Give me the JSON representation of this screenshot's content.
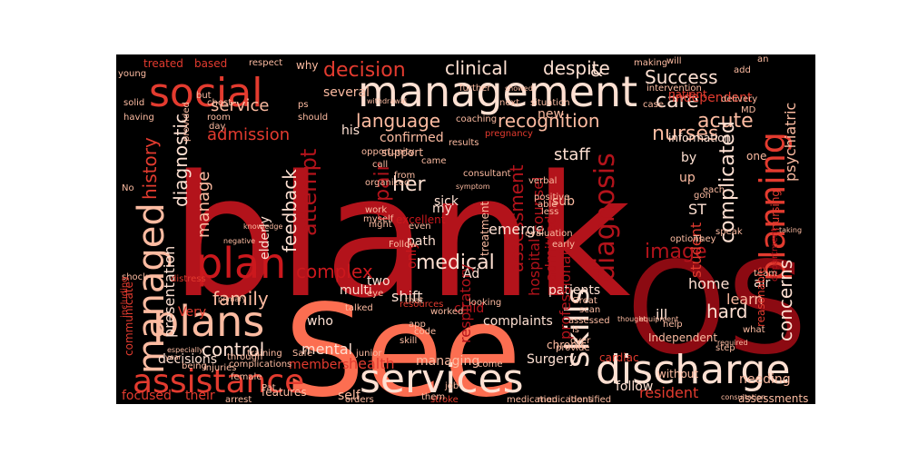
{
  "wordcloud": {
    "palette": {
      "background": "#000000",
      "deep_red": "#a50f15",
      "crimson": "#b3131b",
      "red": "#cb181d",
      "mid_red": "#e33b2f",
      "salmon": "#fc8a6a",
      "coral": "#fc6e51",
      "pale": "#fee0d2",
      "light_pink": "#fcbba1",
      "dark": "#67000d",
      "faint": "#3a0508"
    },
    "words": [
      {
        "text": "blank",
        "color": "#b3131b"
      },
      {
        "text": "See",
        "color": "#fc6e51"
      },
      {
        "text": "OS",
        "color": "#8c0a12"
      },
      {
        "text": "management",
        "color": "#fee0d2"
      },
      {
        "text": "social",
        "color": "#e33b2f"
      },
      {
        "text": "discharge",
        "color": "#fee0d2"
      },
      {
        "text": "services",
        "color": "#fee0d2"
      },
      {
        "text": "assistance",
        "color": "#e33b2f"
      },
      {
        "text": "planning",
        "color": "#e33b2f"
      },
      {
        "text": "managed",
        "color": "#fcbba1"
      },
      {
        "text": "plans",
        "color": "#fcbba1"
      },
      {
        "text": "skills",
        "color": "#fee0d2"
      },
      {
        "text": "plan",
        "color": "#cb181d"
      },
      {
        "text": "diagnosis",
        "color": "#b3131b"
      },
      {
        "text": "decision",
        "color": "#e33b2f"
      },
      {
        "text": "clinical",
        "color": "#fee0d2"
      },
      {
        "text": "despite",
        "color": "#fee0d2"
      },
      {
        "text": "Success",
        "color": "#fee0d2"
      },
      {
        "text": "language",
        "color": "#fcbba1"
      },
      {
        "text": "recognition",
        "color": "#fcbba1"
      },
      {
        "text": "nurses",
        "color": "#fcbba1"
      },
      {
        "text": "acute",
        "color": "#fcbba1"
      },
      {
        "text": "care",
        "color": "#fee0d2"
      },
      {
        "text": "service",
        "color": "#fcbba1"
      },
      {
        "text": "admission",
        "color": "#e33b2f"
      },
      {
        "text": "history",
        "color": "#e33b2f"
      },
      {
        "text": "diagnostic",
        "color": "#fee0d2"
      },
      {
        "text": "attempt",
        "color": "#b3131b"
      },
      {
        "text": "feedback",
        "color": "#fee0d2"
      },
      {
        "text": "assessment",
        "color": "#b3131b"
      },
      {
        "text": "repair",
        "color": "#b3131b"
      },
      {
        "text": "her",
        "color": "#fee0d2"
      },
      {
        "text": "medical",
        "color": "#fee0d2"
      },
      {
        "text": "manage",
        "color": "#fcbba1"
      },
      {
        "text": "family",
        "color": "#fcbba1"
      },
      {
        "text": "control",
        "color": "#fee0d2"
      },
      {
        "text": "complex",
        "color": "#cb181d"
      },
      {
        "text": "complicated",
        "color": "#fee0d2"
      },
      {
        "text": "concerns",
        "color": "#fee0d2"
      },
      {
        "text": "hard",
        "color": "#fee0d2"
      },
      {
        "text": "image",
        "color": "#b3131b"
      },
      {
        "text": "student",
        "color": "#e33b2f"
      },
      {
        "text": "staff",
        "color": "#fee0d2"
      },
      {
        "text": "resident",
        "color": "#e33b2f"
      },
      {
        "text": "focused",
        "color": "#e33b2f"
      },
      {
        "text": "decisions",
        "color": "#fee0d2"
      },
      {
        "text": "mental",
        "color": "#fee0d2"
      },
      {
        "text": "health",
        "color": "#e33b2f"
      },
      {
        "text": "patients",
        "color": "#fee0d2"
      },
      {
        "text": "Surgery",
        "color": "#fee0d2"
      },
      {
        "text": "complaints",
        "color": "#fee0d2"
      },
      {
        "text": "managing",
        "color": "#fcbba1"
      },
      {
        "text": "home",
        "color": "#fee0d2"
      },
      {
        "text": "learn",
        "color": "#fcbba1"
      },
      {
        "text": "shift",
        "color": "#fee0d2"
      },
      {
        "text": "emerge",
        "color": "#fee0d2"
      },
      {
        "text": "path",
        "color": "#fee0d2"
      },
      {
        "text": "sick",
        "color": "#fee0d2"
      },
      {
        "text": "two",
        "color": "#fee0d2"
      },
      {
        "text": "multi",
        "color": "#fee0d2"
      },
      {
        "text": "members",
        "color": "#e33b2f"
      },
      {
        "text": "presentation",
        "color": "#fee0d2"
      },
      {
        "text": "independent",
        "color": "#e33b2f"
      },
      {
        "text": "psychiatric",
        "color": "#fcbba1"
      },
      {
        "text": "nursing",
        "color": "#e33b2f"
      },
      {
        "text": "treated",
        "color": "#e33b2f"
      },
      {
        "text": "based",
        "color": "#e33b2f"
      },
      {
        "text": "why",
        "color": "#fcbba1"
      },
      {
        "text": "several",
        "color": "#fcbba1"
      },
      {
        "text": "his",
        "color": "#fee0d2"
      },
      {
        "text": "confirmed",
        "color": "#fcbba1"
      },
      {
        "text": "support",
        "color": "#fcbba1"
      },
      {
        "text": "information",
        "color": "#fee0d2"
      },
      {
        "text": "treatment",
        "color": "#fcbba1"
      },
      {
        "text": "elderly",
        "color": "#fee0d2"
      },
      {
        "text": "child",
        "color": "#b3131b"
      },
      {
        "text": "only",
        "color": "#cb181d"
      },
      {
        "text": "my",
        "color": "#fee0d2"
      },
      {
        "text": "respiratory",
        "color": "#b3131b"
      },
      {
        "text": "hospital",
        "color": "#b3131b"
      },
      {
        "text": "admitted",
        "color": "#b3131b"
      },
      {
        "text": "professional",
        "color": "#b3131b"
      },
      {
        "text": "counsel",
        "color": "#b3131b"
      },
      {
        "text": "ill",
        "color": "#fee0d2"
      },
      {
        "text": "needing",
        "color": "#fcbba1"
      },
      {
        "text": "follow",
        "color": "#fee0d2"
      },
      {
        "text": "self",
        "color": "#fcbba1"
      },
      {
        "text": "features",
        "color": "#fcbba1"
      },
      {
        "text": "their",
        "color": "#e33b2f"
      },
      {
        "text": "Very",
        "color": "#e33b2f"
      },
      {
        "text": "Ad",
        "color": "#fee0d2"
      },
      {
        "text": "who",
        "color": "#fee0d2"
      },
      {
        "text": "excellent",
        "color": "#cb181d"
      },
      {
        "text": "patient",
        "color": "#e33b2f"
      },
      {
        "text": "department",
        "color": "#b3131b"
      },
      {
        "text": "assessments",
        "color": "#fcbba1"
      },
      {
        "text": "orders",
        "color": "#fcbba1"
      },
      {
        "text": "medication",
        "color": "#fcbba1"
      },
      {
        "text": "medications",
        "color": "#fcbba1"
      },
      {
        "text": "identified",
        "color": "#fcbba1"
      },
      {
        "text": "stroke",
        "color": "#e33b2f"
      },
      {
        "text": "arrest",
        "color": "#fcbba1"
      },
      {
        "text": "chronic",
        "color": "#fcbba1"
      },
      {
        "text": "cardiac",
        "color": "#e33b2f"
      },
      {
        "text": "Independent",
        "color": "#fcbba1"
      },
      {
        "text": "without",
        "color": "#fcbba1"
      },
      {
        "text": "room",
        "color": "#fcbba1"
      },
      {
        "text": "chest",
        "color": "#fcbba1"
      },
      {
        "text": "young",
        "color": "#fcbba1"
      },
      {
        "text": "solid",
        "color": "#fcbba1"
      },
      {
        "text": "having",
        "color": "#fcbba1"
      },
      {
        "text": "shock",
        "color": "#fcbba1"
      },
      {
        "text": "distress",
        "color": "#e33b2f"
      },
      {
        "text": "being",
        "color": "#fcbba1"
      },
      {
        "text": "complications",
        "color": "#fcbba1"
      },
      {
        "text": "female",
        "color": "#fcbba1"
      },
      {
        "text": "training",
        "color": "#fcbba1"
      },
      {
        "text": "through",
        "color": "#fcbba1"
      },
      {
        "text": "injuries",
        "color": "#fcbba1"
      },
      {
        "text": "should",
        "color": "#fcbba1"
      },
      {
        "text": "opportunity",
        "color": "#fcbba1"
      },
      {
        "text": "call",
        "color": "#fcbba1"
      },
      {
        "text": "came",
        "color": "#fcbba1"
      },
      {
        "text": "consultant",
        "color": "#fcbba1"
      },
      {
        "text": "organized",
        "color": "#fcbba1"
      },
      {
        "text": "positive",
        "color": "#fcbba1"
      },
      {
        "text": "evaluation",
        "color": "#fcbba1"
      },
      {
        "text": "verbal",
        "color": "#fcbba1"
      },
      {
        "text": "able",
        "color": "#fcbba1"
      },
      {
        "text": "less",
        "color": "#fcbba1"
      },
      {
        "text": "from",
        "color": "#fcbba1"
      },
      {
        "text": "work",
        "color": "#fcbba1"
      },
      {
        "text": "myself",
        "color": "#fcbba1"
      },
      {
        "text": "night",
        "color": "#fcbba1"
      },
      {
        "text": "even",
        "color": "#fcbba1"
      },
      {
        "text": "code",
        "color": "#fcbba1"
      },
      {
        "text": "that",
        "color": "#fcbba1"
      },
      {
        "text": "Great",
        "color": "#fcbba1"
      },
      {
        "text": "scan",
        "color": "#fcbba1"
      },
      {
        "text": "assessed",
        "color": "#fcbba1"
      },
      {
        "text": "options",
        "color": "#fcbba1"
      },
      {
        "text": "They",
        "color": "#fcbba1"
      },
      {
        "text": "speak",
        "color": "#fcbba1"
      },
      {
        "text": "team",
        "color": "#fcbba1"
      },
      {
        "text": "air",
        "color": "#fee0d2"
      },
      {
        "text": "help",
        "color": "#fcbba1"
      },
      {
        "text": "Safe",
        "color": "#fcbba1"
      },
      {
        "text": "Pat",
        "color": "#fcbba1"
      },
      {
        "text": "junior",
        "color": "#fcbba1"
      },
      {
        "text": "skill",
        "color": "#fcbba1"
      },
      {
        "text": "job",
        "color": "#fcbba1"
      },
      {
        "text": "them",
        "color": "#fcbba1"
      },
      {
        "text": "provide",
        "color": "#fcbba1"
      },
      {
        "text": "step",
        "color": "#fcbba1"
      },
      {
        "text": "early",
        "color": "#fcbba1"
      },
      {
        "text": "is",
        "color": "#fcbba1"
      },
      {
        "text": "over",
        "color": "#fcbba1"
      },
      {
        "text": "what",
        "color": "#fcbba1"
      },
      {
        "text": "add",
        "color": "#fcbba1"
      },
      {
        "text": "delivery",
        "color": "#fcbba1"
      },
      {
        "text": "making",
        "color": "#fcbba1"
      },
      {
        "text": "intervention",
        "color": "#fcbba1"
      },
      {
        "text": "case",
        "color": "#fcbba1"
      },
      {
        "text": "next",
        "color": "#fcbba1"
      },
      {
        "text": "situation",
        "color": "#fcbba1"
      },
      {
        "text": "further",
        "color": "#fcbba1"
      },
      {
        "text": "coaching",
        "color": "#fcbba1"
      },
      {
        "text": "respect",
        "color": "#fcbba1"
      },
      {
        "text": "pregnancy",
        "color": "#e33b2f"
      },
      {
        "text": "results",
        "color": "#fcbba1"
      },
      {
        "text": "withdrawal",
        "color": "#fcbba1"
      },
      {
        "text": "showed",
        "color": "#fcbba1"
      },
      {
        "text": "ps",
        "color": "#fcbba1"
      },
      {
        "text": "but",
        "color": "#fcbba1"
      },
      {
        "text": "day",
        "color": "#fcbba1"
      },
      {
        "text": "provided",
        "color": "#fcbba1"
      },
      {
        "text": "one",
        "color": "#fcbba1"
      },
      {
        "text": "each",
        "color": "#fcbba1"
      },
      {
        "text": "ST",
        "color": "#fee0d2"
      },
      {
        "text": "up",
        "color": "#fcbba1"
      },
      {
        "text": "gon",
        "color": "#fcbba1"
      },
      {
        "text": "by",
        "color": "#fee0d2"
      },
      {
        "text": "sub",
        "color": "#fcbba1"
      },
      {
        "text": "new",
        "color": "#fcbba1"
      },
      {
        "text": "MD",
        "color": "#fcbba1"
      },
      {
        "text": "an",
        "color": "#fcbba1"
      },
      {
        "text": "will",
        "color": "#fcbba1"
      },
      {
        "text": "&",
        "color": "#fee0d2"
      },
      {
        "text": "Follow",
        "color": "#fcbba1"
      },
      {
        "text": "talked",
        "color": "#fcbba1"
      },
      {
        "text": "eye",
        "color": "#fcbba1"
      },
      {
        "text": "app",
        "color": "#fcbba1"
      },
      {
        "text": "come",
        "color": "#fcbba1"
      },
      {
        "text": "consultation",
        "color": "#fcbba1"
      },
      {
        "text": "taking",
        "color": "#fcbba1"
      },
      {
        "text": "reasonable",
        "color": "#e33b2f"
      },
      {
        "text": "knowledge",
        "color": "#fcbba1"
      },
      {
        "text": "negative",
        "color": "#fcbba1"
      },
      {
        "text": "communicate",
        "color": "#e33b2f"
      },
      {
        "text": "including",
        "color": "#e33b2f"
      },
      {
        "text": "especially",
        "color": "#fcbba1"
      },
      {
        "text": "primary",
        "color": "#fcbba1"
      },
      {
        "text": "year",
        "color": "#fcbba1"
      },
      {
        "text": "worked",
        "color": "#fcbba1"
      },
      {
        "text": "looking",
        "color": "#fcbba1"
      },
      {
        "text": "resources",
        "color": "#e33b2f"
      },
      {
        "text": "symptom",
        "color": "#fcbba1"
      },
      {
        "text": "thought",
        "color": "#fcbba1"
      },
      {
        "text": "equipment",
        "color": "#fcbba1"
      },
      {
        "text": "required",
        "color": "#fcbba1"
      },
      {
        "text": "No",
        "color": "#fcbba1"
      }
    ]
  }
}
